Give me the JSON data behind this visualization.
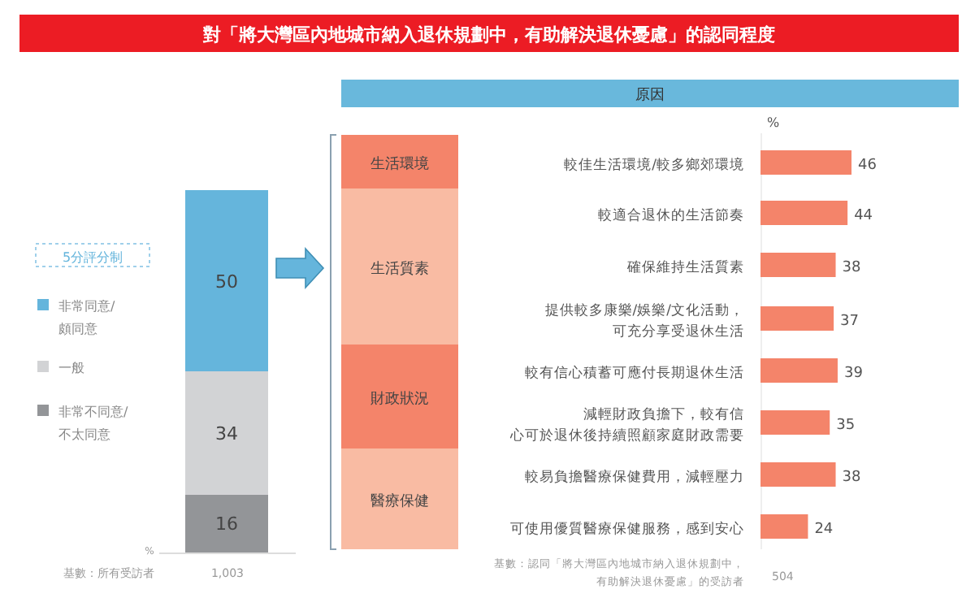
{
  "chart_data": [
    {
      "type": "bar",
      "stacked": true,
      "title": "對「將大灣區內地城市納入退休規劃中，有助解決退休憂慮」的認同程度",
      "legend_title": "5分評分制",
      "legend": "left",
      "data_labels": true,
      "categories": [
        null
      ],
      "series": [
        {
          "name": "非常不同意/不太同意",
          "color": "#939598",
          "values": [
            16
          ]
        },
        {
          "name": "一般",
          "color": "#d2d3d5",
          "values": [
            34
          ]
        },
        {
          "name": "非常同意/頗同意",
          "color": "#65b5dc",
          "values": [
            50
          ]
        }
      ],
      "annotations": [
        "%",
        "基數：所有受訪者",
        "1,003"
      ]
    },
    {
      "type": "bar",
      "orientation": "horizontal",
      "title": "原因",
      "data_labels": true,
      "categories": [
        "較佳生活環境/較多鄉郊環境",
        "較適合退休的生活節奏",
        "確保維持生活質素",
        "提供較多康樂/娛樂/文化活動，可充分享受退休生活",
        "較有信心積蓄可應付長期退休生活",
        "減輕財政負擔下，較有信心可於退休後持續照顧家庭財政需要",
        "較易負擔醫療保健費用，減輕壓力",
        "可使用優質醫療保健服務，感到安心"
      ],
      "values": [
        46,
        44,
        38,
        37,
        39,
        35,
        38,
        24
      ],
      "color": "#f4846a",
      "annotations": [
        "%",
        "生活環境",
        "生活質素",
        "財政狀況",
        "醫療保健",
        "基數：認同「將大灣區內地城市納入退休規劃中，有助解決退休憂慮」的受訪者",
        "504"
      ]
    }
  ]
}
